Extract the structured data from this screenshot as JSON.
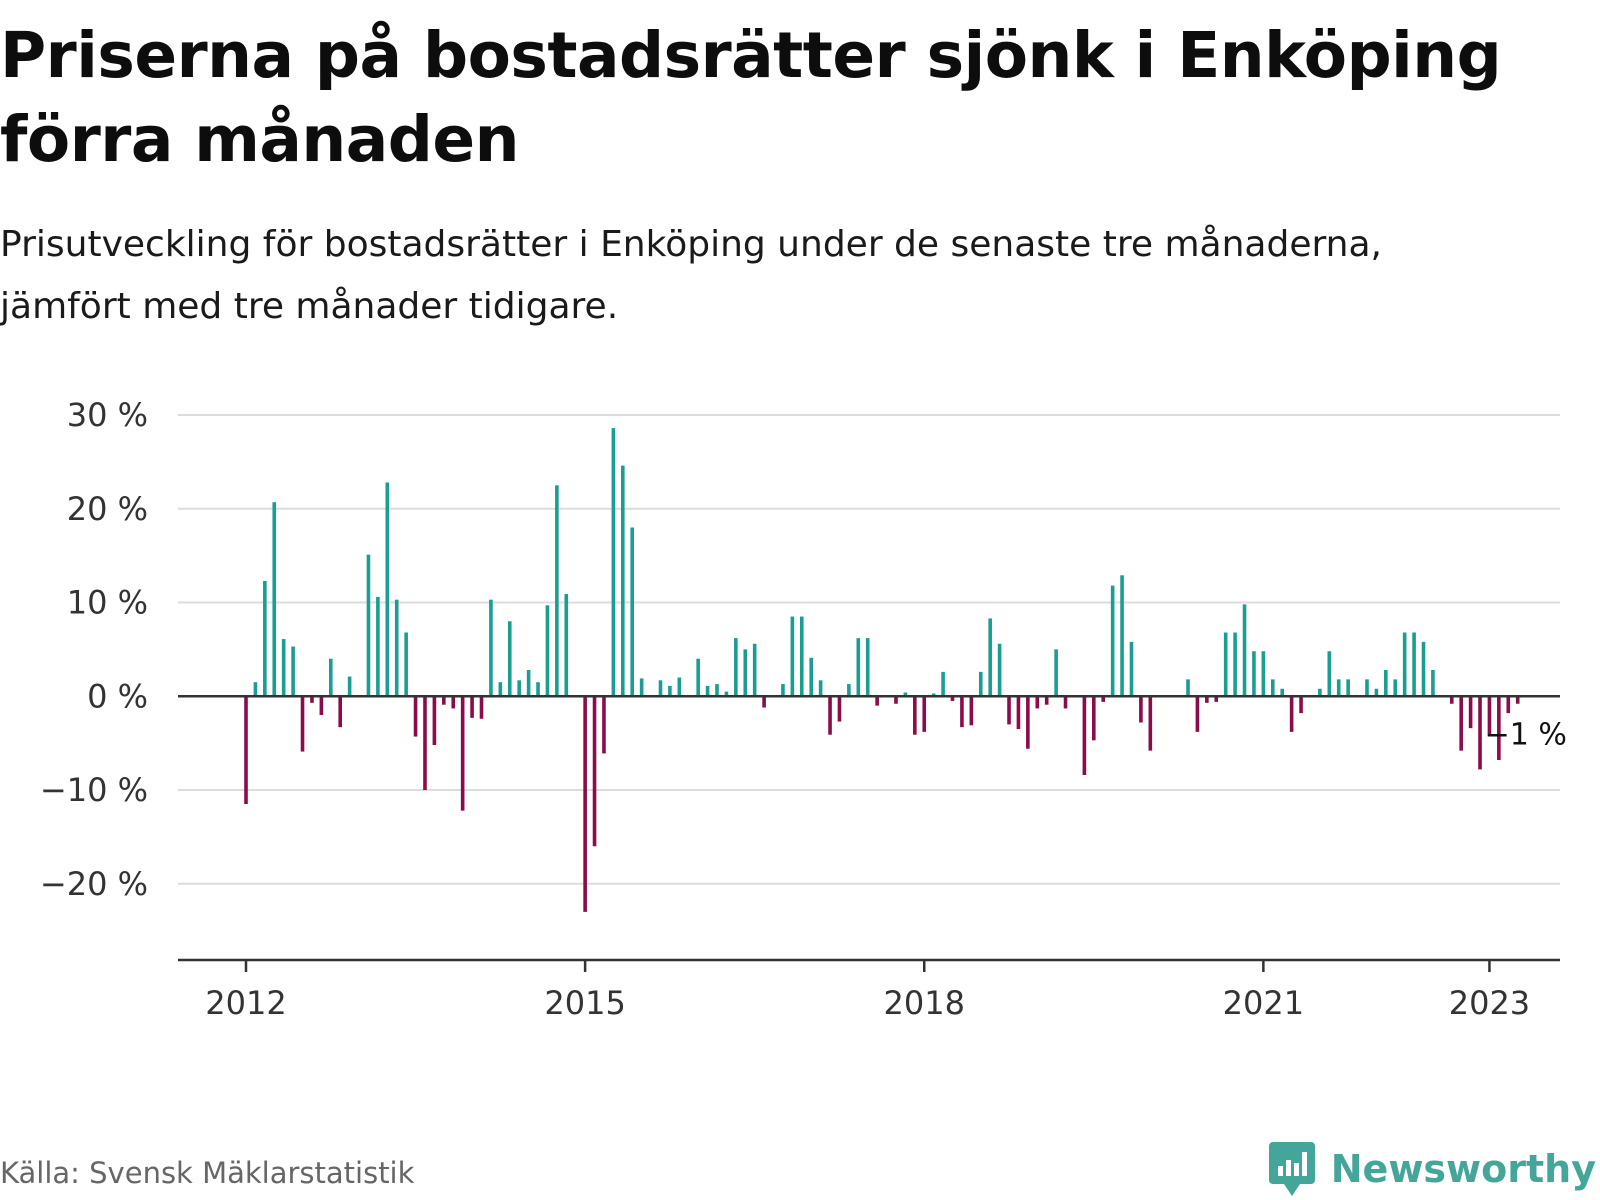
{
  "header": {
    "title": "Priserna på bostadsrätter sjönk i Enköping förra månaden",
    "subtitle": "Prisutveckling för bostadsrätter i Enköping under de senaste tre månaderna, jämfört med tre månader tidigare."
  },
  "footer": {
    "source": "Källa: Svensk Mäklarstatistik",
    "brand": "Newsworthy",
    "brand_icon": "bar-chart-icon"
  },
  "colors": {
    "positive": "#1a9e92",
    "negative": "#8b0b4b",
    "grid": "#dcdcdc",
    "axis": "#333333",
    "brand": "#44a69a"
  },
  "chart_data": {
    "type": "bar",
    "start": "2012-01",
    "ylim": [
      -26,
      30
    ],
    "yticks": [
      30,
      20,
      10,
      0,
      -10,
      -20
    ],
    "ytick_labels": [
      "30 %",
      "20 %",
      "10 %",
      "0 %",
      "−10 %",
      "−20 %"
    ],
    "xticks": [
      "2012-01",
      "2015-01",
      "2018-01",
      "2021-01",
      "2023-01"
    ],
    "xtick_labels": [
      "2012",
      "2015",
      "2018",
      "2021",
      "2023"
    ],
    "annotation": "−1 %",
    "grid": true,
    "values": [
      -11.5,
      1.5,
      12.3,
      20.7,
      6.1,
      5.3,
      -5.9,
      -0.7,
      -2.0,
      4.0,
      -3.3,
      2.1,
      0,
      15.1,
      10.6,
      22.8,
      10.3,
      6.8,
      -4.3,
      -10.0,
      -5.2,
      -0.9,
      -1.3,
      -12.2,
      -2.3,
      -2.4,
      10.3,
      1.5,
      8.0,
      1.7,
      2.8,
      1.5,
      9.7,
      22.5,
      10.9,
      0,
      -23.0,
      -16.0,
      -6.1,
      28.6,
      24.6,
      18.0,
      1.9,
      0,
      1.7,
      1.1,
      2.0,
      0,
      4.0,
      1.1,
      1.3,
      0.5,
      6.2,
      5.0,
      5.6,
      -1.2,
      0,
      1.3,
      8.5,
      8.5,
      4.1,
      1.7,
      -4.1,
      -2.7,
      1.3,
      6.2,
      6.2,
      -1.0,
      0,
      -0.8,
      0.4,
      -4.1,
      -3.8,
      0.3,
      2.6,
      -0.5,
      -3.3,
      -3.1,
      2.6,
      8.3,
      5.6,
      -3.0,
      -3.5,
      -5.6,
      -1.3,
      -0.9,
      5.0,
      -1.3,
      0,
      -8.4,
      -4.7,
      -0.6,
      11.8,
      12.9,
      5.8,
      -2.8,
      -5.8,
      0,
      0,
      0,
      1.8,
      -3.8,
      -0.7,
      -0.6,
      6.8,
      6.8,
      9.8,
      4.8,
      4.8,
      1.8,
      0.8,
      -3.8,
      -1.8,
      0,
      0.8,
      4.8,
      1.8,
      1.8,
      0,
      1.8,
      0.8,
      2.8,
      1.8,
      6.8,
      6.8,
      5.8,
      2.8,
      0,
      -0.8,
      -5.8,
      -3.4,
      -7.8,
      -4.2,
      -6.8,
      -1.8,
      -0.8
    ]
  }
}
